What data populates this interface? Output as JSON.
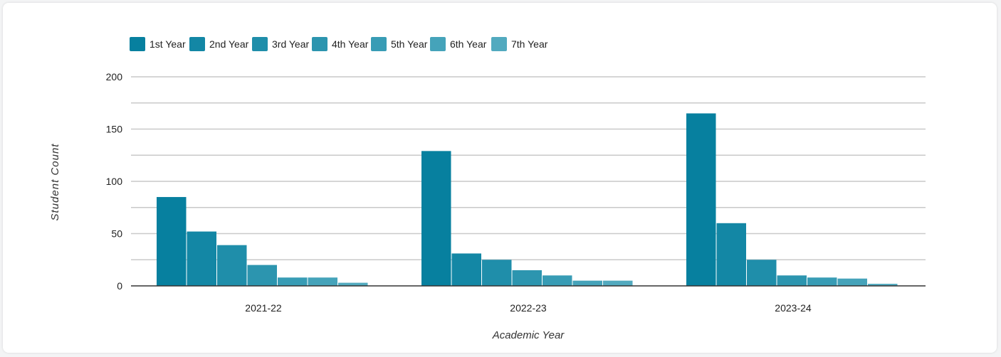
{
  "chart_data": {
    "type": "bar",
    "title": "",
    "xlabel": "Academic Year",
    "ylabel": "Student Count",
    "categories": [
      "2021-22",
      "2022-23",
      "2023-24"
    ],
    "ylim": [
      0,
      200
    ],
    "yticks": [
      0,
      50,
      100,
      150,
      200
    ],
    "grid": true,
    "legend_position": "top-left",
    "series": [
      {
        "name": "1st Year",
        "color": "#07809f",
        "values": [
          85,
          129,
          165
        ]
      },
      {
        "name": "2nd Year",
        "color": "#1387a5",
        "values": [
          52,
          31,
          60
        ]
      },
      {
        "name": "3rd Year",
        "color": "#1f8eaa",
        "values": [
          39,
          25,
          25
        ]
      },
      {
        "name": "4th Year",
        "color": "#2c95af",
        "values": [
          20,
          15,
          10
        ]
      },
      {
        "name": "5th Year",
        "color": "#389cb5",
        "values": [
          8,
          10,
          8
        ]
      },
      {
        "name": "6th Year",
        "color": "#45a3ba",
        "values": [
          8,
          5,
          7
        ]
      },
      {
        "name": "7th Year",
        "color": "#52aabf",
        "values": [
          3,
          5,
          2
        ]
      }
    ]
  }
}
